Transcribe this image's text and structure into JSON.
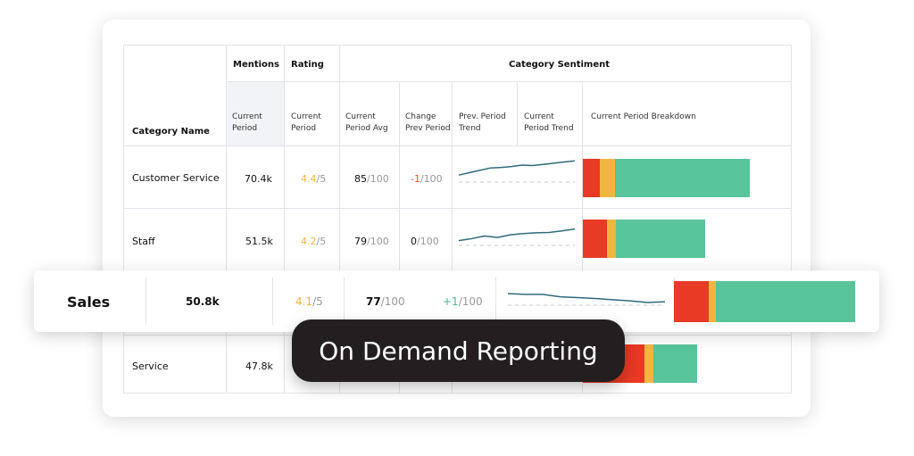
{
  "colors": {
    "negative": "#e83a25",
    "neutral": "#f0b63f",
    "positive": "#58c49a",
    "rating": "#f0b63f",
    "trend": "#2e6b7a",
    "change_neg": "#e8473a",
    "change_pos": "#3dbb8a"
  },
  "header": {
    "category_name": "Category Name",
    "mentions": "Mentions",
    "rating": "Rating",
    "category_sentiment": "Category Sentiment",
    "sub": {
      "mentions_current": "Current Period",
      "rating_current": "Current Period",
      "avg": "Current Period Avg",
      "change": "Change Prev Period",
      "prev_trend": "Prev. Period Trend",
      "cur_trend": "Current Period Trend",
      "breakdown": "Current Period Breakdown"
    }
  },
  "rows": [
    {
      "name": "Customer Service",
      "mentions": "70.4k",
      "rating": "4.4",
      "rating_max": "/5",
      "avg": "85",
      "avg_max": "/100",
      "change": "-1",
      "change_max": "/100",
      "trend": [
        0,
        1,
        2,
        3,
        3.2,
        3.6,
        4.2,
        4,
        4.5,
        5,
        5.5,
        6
      ],
      "breakdown": [
        10,
        9.5,
        80.5
      ]
    },
    {
      "name": "Staff",
      "mentions": "51.5k",
      "rating": "4.2",
      "rating_max": "/5",
      "avg": "79",
      "avg_max": "/100",
      "change": "0",
      "change_max": "/100",
      "trend": [
        0,
        0.5,
        1.2,
        0.8,
        1.5,
        1.8,
        2,
        2.1,
        2.5,
        3
      ],
      "breakdown": [
        20,
        7,
        73
      ]
    },
    {
      "name": "Sales",
      "mentions": "50.8k",
      "rating": "4.1",
      "rating_max": "/5",
      "avg": "77",
      "avg_max": "/100",
      "change": "+1",
      "change_max": "/100",
      "trend": [
        3,
        2.8,
        2.8,
        2.2,
        2,
        1.8,
        1.5,
        1.2,
        0.8,
        1
      ],
      "breakdown": [
        19,
        4,
        77
      ]
    },
    {
      "name": "Service",
      "mentions": "47.8k",
      "breakdown": [
        54,
        8,
        38
      ]
    }
  ],
  "banner": "On Demand Reporting"
}
